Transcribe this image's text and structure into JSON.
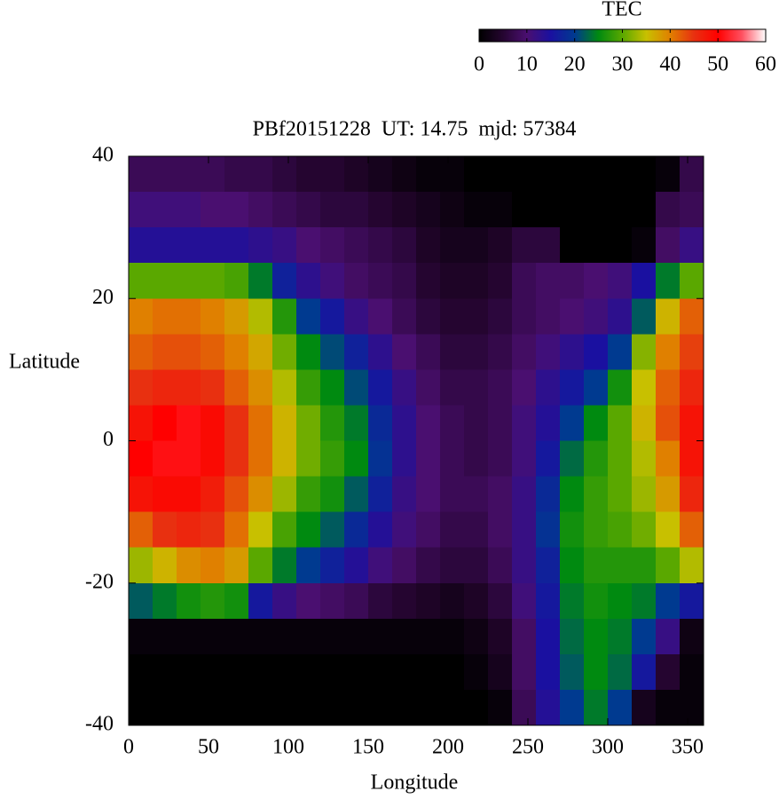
{
  "chart_data": {
    "type": "heatmap",
    "title": "PBf20151228  UT: 14.75  mjd: 57384",
    "xlabel": "Longitude",
    "ylabel": "Latitude",
    "colorbar_title": "TEC",
    "x": [
      7.5,
      22.5,
      37.5,
      52.5,
      67.5,
      82.5,
      97.5,
      112.5,
      127.5,
      142.5,
      157.5,
      172.5,
      187.5,
      202.5,
      217.5,
      232.5,
      247.5,
      262.5,
      277.5,
      292.5,
      307.5,
      322.5,
      337.5,
      352.5
    ],
    "y": [
      37.5,
      32.5,
      27.5,
      22.5,
      17.5,
      12.5,
      7.5,
      2.5,
      -2.5,
      -7.5,
      -12.5,
      -17.5,
      -22.5,
      -27.5,
      -32.5,
      -37.5
    ],
    "z": [
      [
        8,
        8,
        8,
        8,
        7,
        7,
        6,
        5,
        5,
        4,
        3,
        2,
        1,
        1,
        0,
        0,
        0,
        0,
        0,
        0,
        0,
        0,
        1,
        7
      ],
      [
        11,
        11,
        11,
        10,
        10,
        9,
        8,
        7,
        6,
        6,
        5,
        4,
        3,
        2,
        1,
        1,
        0,
        0,
        0,
        0,
        0,
        0,
        7,
        8
      ],
      [
        14,
        14,
        14,
        14,
        14,
        13,
        12,
        10,
        9,
        8,
        7,
        6,
        4,
        3,
        3,
        4,
        6,
        6,
        0,
        0,
        0,
        1,
        9,
        12
      ],
      [
        30,
        30,
        30,
        30,
        29,
        24,
        17,
        13,
        11,
        9,
        8,
        7,
        5,
        4,
        4,
        5,
        8,
        9,
        9,
        10,
        11,
        15,
        24,
        30
      ],
      [
        40,
        41,
        41,
        40,
        38,
        34,
        27,
        20,
        16,
        12,
        10,
        8,
        6,
        5,
        5,
        6,
        8,
        9,
        10,
        11,
        13,
        22,
        36,
        42
      ],
      [
        42,
        43,
        43,
        42,
        40,
        37,
        31,
        25,
        21,
        17,
        13,
        10,
        8,
        6,
        6,
        7,
        9,
        11,
        13,
        15,
        20,
        32,
        40,
        44
      ],
      [
        45,
        46,
        46,
        45,
        42,
        39,
        34,
        28,
        25,
        21,
        16,
        12,
        9,
        7,
        7,
        8,
        10,
        13,
        16,
        20,
        26,
        35,
        42,
        46
      ],
      [
        48,
        50,
        51,
        49,
        45,
        41,
        36,
        31,
        27,
        24,
        18,
        13,
        10,
        8,
        7,
        8,
        11,
        14,
        20,
        25,
        30,
        36,
        43,
        48
      ],
      [
        50,
        51,
        51,
        49,
        45,
        41,
        36,
        31,
        28,
        25,
        19,
        13,
        10,
        8,
        7,
        8,
        11,
        16,
        23,
        27,
        30,
        34,
        40,
        48
      ],
      [
        48,
        49,
        49,
        47,
        43,
        39,
        33,
        28,
        26,
        22,
        17,
        12,
        10,
        8,
        8,
        9,
        12,
        18,
        25,
        28,
        30,
        33,
        38,
        46
      ],
      [
        42,
        45,
        46,
        45,
        41,
        35,
        29,
        25,
        22,
        18,
        14,
        11,
        9,
        7,
        7,
        9,
        12,
        19,
        26,
        28,
        29,
        31,
        35,
        42
      ],
      [
        33,
        36,
        39,
        40,
        38,
        30,
        24,
        20,
        17,
        14,
        11,
        9,
        7,
        6,
        6,
        8,
        12,
        17,
        25,
        27,
        27,
        27,
        30,
        34
      ],
      [
        22,
        24,
        26,
        27,
        26,
        16,
        12,
        10,
        9,
        8,
        6,
        5,
        4,
        3,
        4,
        6,
        11,
        16,
        24,
        26,
        25,
        24,
        20,
        16
      ],
      [
        1,
        1,
        1,
        1,
        1,
        1,
        1,
        1,
        1,
        1,
        1,
        1,
        1,
        1,
        2,
        4,
        9,
        15,
        23,
        25,
        24,
        20,
        12,
        2
      ],
      [
        0,
        0,
        0,
        0,
        0,
        0,
        0,
        0,
        0,
        0,
        0,
        0,
        0,
        0,
        1,
        3,
        9,
        15,
        22,
        25,
        23,
        16,
        5,
        1
      ],
      [
        0,
        0,
        0,
        0,
        0,
        0,
        0,
        0,
        0,
        0,
        0,
        0,
        0,
        0,
        0,
        1,
        8,
        14,
        20,
        24,
        20,
        3,
        1,
        1
      ]
    ],
    "xlim": [
      0,
      360
    ],
    "xticks": [
      0,
      50,
      100,
      150,
      200,
      250,
      300,
      350
    ],
    "ylim": [
      -40,
      40
    ],
    "yticks": [
      -40,
      -20,
      0,
      20,
      40
    ],
    "clim": [
      0,
      60
    ],
    "cticks": [
      0,
      10,
      20,
      30,
      40,
      50,
      60
    ],
    "colormap": [
      "#000000",
      "#250530",
      "#4a0f70",
      "#1a10a0",
      "#003a90",
      "#008a10",
      "#5aa800",
      "#c8c000",
      "#e08000",
      "#e83010",
      "#ff0000",
      "#ff5060",
      "#ffffff"
    ]
  }
}
